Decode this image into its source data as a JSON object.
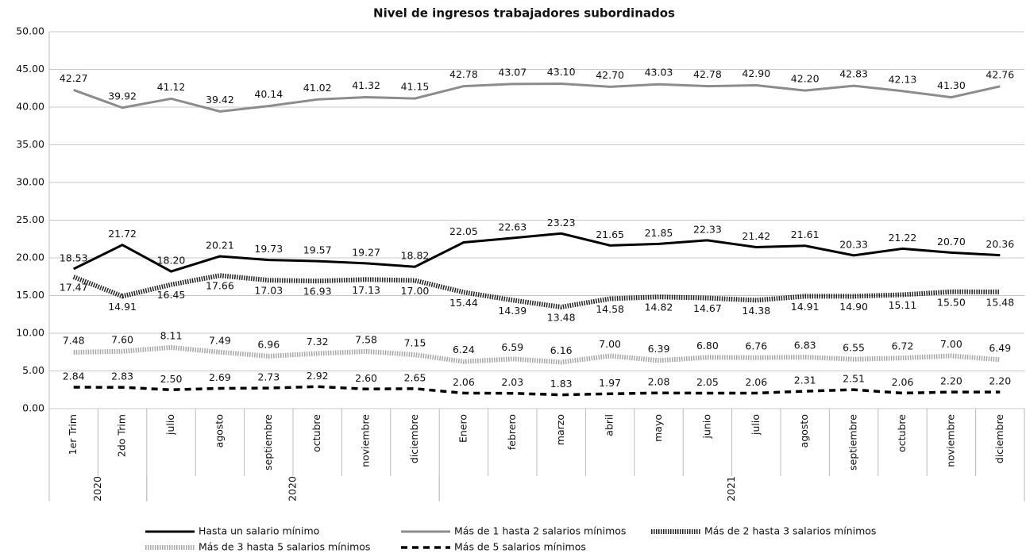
{
  "chart_data": {
    "type": "line",
    "title": "Nivel de ingresos trabajadores subordinados",
    "categories": [
      "1er Trim",
      "2do Trim",
      "julio",
      "agosto",
      "septiembre",
      "octubre",
      "noviembre",
      "diciembre",
      "Enero",
      "febrero",
      "marzo",
      "abril",
      "mayo",
      "junio",
      "julio",
      "agosto",
      "septiembre",
      "octubre",
      "noviembre",
      "diciembre"
    ],
    "groups": [
      {
        "label": "2020",
        "count": 2
      },
      {
        "label": "2020",
        "count": 6
      },
      {
        "label": "2021",
        "count": 12
      }
    ],
    "series": [
      {
        "name": "Hasta un salario mínimo",
        "color": "#000000",
        "style": "solid",
        "values": [
          18.53,
          21.72,
          18.2,
          20.21,
          19.73,
          19.57,
          19.27,
          18.82,
          22.05,
          22.63,
          23.23,
          21.65,
          21.85,
          22.33,
          21.42,
          21.61,
          20.33,
          21.22,
          20.7,
          20.36
        ],
        "value_labels": [
          "18.53",
          "21.72",
          "18.20",
          "20.21",
          "19.73",
          "19.57",
          "19.27",
          "18.82",
          "22.05",
          "22.63",
          "23.23",
          "21.65",
          "21.85",
          "22.33",
          "21.42",
          "21.61",
          "20.33",
          "21.22",
          "20.70",
          "20.36"
        ]
      },
      {
        "name": "Más de 1 hasta 2 salarios mínimos",
        "color": "#8c8c8c",
        "style": "solid",
        "values": [
          42.27,
          39.92,
          41.12,
          39.42,
          40.14,
          41.02,
          41.32,
          41.15,
          42.78,
          43.07,
          43.1,
          42.7,
          43.03,
          42.78,
          42.9,
          42.2,
          42.83,
          42.13,
          41.3,
          42.76
        ],
        "value_labels": [
          "42.27",
          "39.92",
          "41.12",
          "39.42",
          "40.14",
          "41.02",
          "41.32",
          "41.15",
          "42.78",
          "43.07",
          "43.10",
          "42.70",
          "43.03",
          "42.78",
          "42.90",
          "42.20",
          "42.83",
          "42.13",
          "41.30",
          "42.76"
        ]
      },
      {
        "name": "Más de 2 hasta 3 salarios mínimos",
        "color": "#222222",
        "style": "dotted",
        "values": [
          17.47,
          14.91,
          16.45,
          17.66,
          17.03,
          16.93,
          17.13,
          17.0,
          15.44,
          14.39,
          13.48,
          14.58,
          14.82,
          14.67,
          14.38,
          14.91,
          14.9,
          15.11,
          15.5,
          15.48
        ],
        "value_labels": [
          "17.47",
          "14.91",
          "16.45",
          "17.66",
          "17.03",
          "16.93",
          "17.13",
          "17.00",
          "15.44",
          "14.39",
          "13.48",
          "14.58",
          "14.82",
          "14.67",
          "14.38",
          "14.91",
          "14.90",
          "15.11",
          "15.50",
          "15.48"
        ]
      },
      {
        "name": "Más de 3 hasta 5 salarios mínimos",
        "color": "#a6a6a6",
        "style": "dotted",
        "values": [
          7.48,
          7.6,
          8.11,
          7.49,
          6.96,
          7.32,
          7.58,
          7.15,
          6.24,
          6.59,
          6.16,
          7.0,
          6.39,
          6.8,
          6.76,
          6.83,
          6.55,
          6.72,
          7.0,
          6.49
        ],
        "value_labels": [
          "7.48",
          "7.60",
          "8.11",
          "7.49",
          "6.96",
          "7.32",
          "7.58",
          "7.15",
          "6.24",
          "6.59",
          "6.16",
          "7.00",
          "6.39",
          "6.80",
          "6.76",
          "6.83",
          "6.55",
          "6.72",
          "7.00",
          "6.49"
        ]
      },
      {
        "name": "Más de 5 salarios mínimos",
        "color": "#000000",
        "style": "dashed",
        "values": [
          2.84,
          2.83,
          2.5,
          2.69,
          2.73,
          2.92,
          2.6,
          2.65,
          2.06,
          2.03,
          1.83,
          1.97,
          2.08,
          2.05,
          2.06,
          2.31,
          2.51,
          2.06,
          2.2,
          2.2
        ],
        "value_labels": [
          "2.84",
          "2.83",
          "2.50",
          "2.69",
          "2.73",
          "2.92",
          "2.60",
          "2.65",
          "2.06",
          "2.03",
          "1.83",
          "1.97",
          "2.08",
          "2.05",
          "2.06",
          "2.31",
          "2.51",
          "2.06",
          "2.20",
          "2.20"
        ]
      }
    ],
    "ylim": [
      0,
      50
    ],
    "yticks": [
      {
        "value": 0,
        "label": "0.00"
      },
      {
        "value": 5,
        "label": "5.00"
      },
      {
        "value": 10,
        "label": "10.00"
      },
      {
        "value": 15,
        "label": "15.00"
      },
      {
        "value": 20,
        "label": "20.00"
      },
      {
        "value": 25,
        "label": "25.00"
      },
      {
        "value": 30,
        "label": "30.00"
      },
      {
        "value": 35,
        "label": "35.00"
      },
      {
        "value": 40,
        "label": "40.00"
      },
      {
        "value": 45,
        "label": "45.00"
      },
      {
        "value": 50,
        "label": "50.00"
      }
    ],
    "grid": true
  }
}
